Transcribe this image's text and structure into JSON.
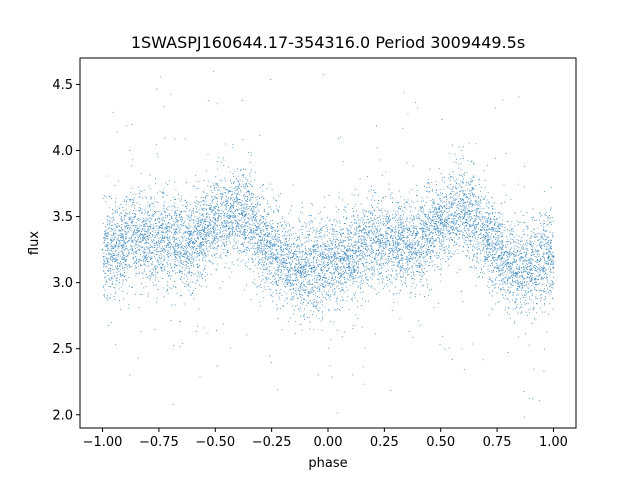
{
  "chart_data": {
    "type": "scatter",
    "title": "1SWASPJ160644.17-354316.0 Period 3009449.5s",
    "xlabel": "phase",
    "ylabel": "flux",
    "xlim": [
      -1.1,
      1.1
    ],
    "ylim": [
      1.9,
      4.7
    ],
    "xticks": [
      -1.0,
      -0.75,
      -0.5,
      -0.25,
      0.0,
      0.25,
      0.5,
      0.75,
      1.0
    ],
    "xtick_labels": [
      "−1.00",
      "−0.75",
      "−0.50",
      "−0.25",
      "0.00",
      "0.25",
      "0.50",
      "0.75",
      "1.00"
    ],
    "yticks": [
      2.0,
      2.5,
      3.0,
      3.5,
      4.0,
      4.5
    ],
    "ytick_labels": [
      "2.0",
      "2.5",
      "3.0",
      "3.5",
      "4.0",
      "4.5"
    ],
    "grid": false,
    "point_color": "#1f77b4",
    "series": [
      {
        "x": [
          -1.0,
          -0.9,
          -0.8,
          -0.7,
          -0.6,
          -0.5,
          -0.4,
          -0.3,
          -0.2,
          -0.1,
          0.0,
          0.1,
          0.2,
          0.3,
          0.4,
          0.5,
          0.6,
          0.7,
          0.8,
          0.9,
          1.0
        ],
        "y": [
          3.25,
          3.3,
          3.35,
          3.3,
          3.3,
          3.45,
          3.55,
          3.35,
          3.15,
          3.1,
          3.15,
          3.2,
          3.3,
          3.3,
          3.3,
          3.45,
          3.55,
          3.35,
          3.15,
          3.1,
          3.2
        ]
      }
    ]
  }
}
